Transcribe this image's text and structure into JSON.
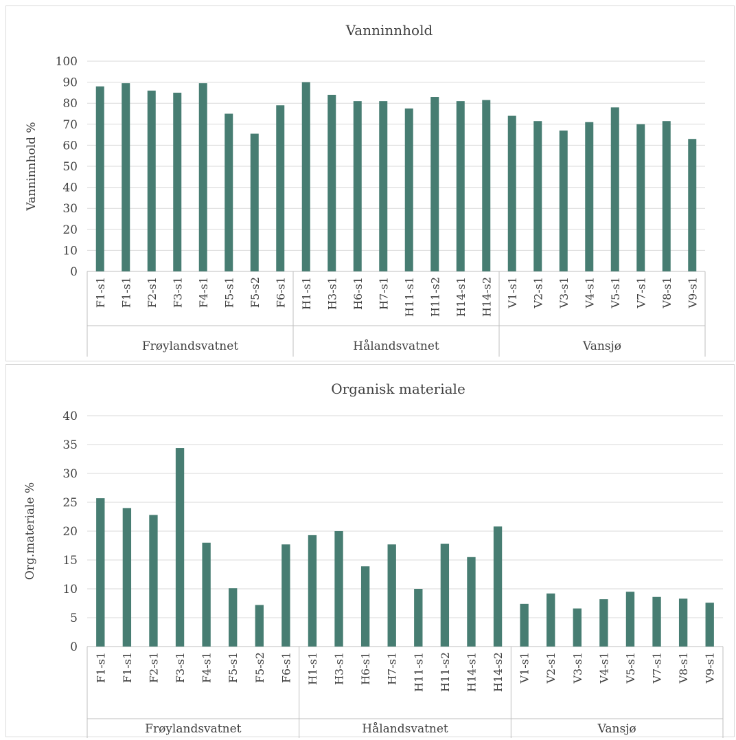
{
  "chart_data": [
    {
      "type": "bar",
      "title": "Vanninnhold",
      "xlabel": "",
      "ylabel": "Vanninnhold %",
      "ylim": [
        0,
        100
      ],
      "yticks": [
        0,
        10,
        20,
        30,
        40,
        50,
        60,
        70,
        80,
        90,
        100
      ],
      "grid": true,
      "legend": "none",
      "bar_color": "#477d72",
      "categories": [
        "F1-s1",
        "F1-s1",
        "F2-s1",
        "F3-s1",
        "F4-s1",
        "F5-s1",
        "F5-s2",
        "F6-s1",
        "H1-s1",
        "H3-s1",
        "H6-s1",
        "H7-s1",
        "H11-s1",
        "H11-s2",
        "H14-s1",
        "H14-s2",
        "V1-s1",
        "V2-s1",
        "V3-s1",
        "V4-s1",
        "V5-s1",
        "V7-s1",
        "V8-s1",
        "V9-s1"
      ],
      "groups": [
        {
          "label": "Frøylandsvatnet",
          "count": 8
        },
        {
          "label": "Hålandsvatnet",
          "count": 8
        },
        {
          "label": "Vansjø",
          "count": 8
        }
      ],
      "values": [
        88,
        89.5,
        86,
        85,
        89.5,
        75,
        65.5,
        79,
        90,
        84,
        81,
        81,
        77.5,
        83,
        81,
        81.5,
        74,
        71.5,
        67,
        71,
        78,
        70,
        71.5,
        63
      ]
    },
    {
      "type": "bar",
      "title": "Organisk materiale",
      "xlabel": "",
      "ylabel": "Org.materiale %",
      "ylim": [
        0,
        40
      ],
      "yticks": [
        0,
        5,
        10,
        15,
        20,
        25,
        30,
        35,
        40
      ],
      "grid": true,
      "legend": "none",
      "bar_color": "#477d72",
      "categories": [
        "F1-s1",
        "F1-s1",
        "F2-s1",
        "F3-s1",
        "F4-s1",
        "F5-s1",
        "F5-s2",
        "F6-s1",
        "H1-s1",
        "H3-s1",
        "H6-s1",
        "H7-s1",
        "H11-s1",
        "H11-s2",
        "H14-s1",
        "H14-s2",
        "V1-s1",
        "V2-s1",
        "V3-s1",
        "V4-s1",
        "V5-s1",
        "V7-s1",
        "V8-s1",
        "V9-s1"
      ],
      "groups": [
        {
          "label": "Frøylandsvatnet",
          "count": 8
        },
        {
          "label": "Hålandsvatnet",
          "count": 8
        },
        {
          "label": "Vansjø",
          "count": 8
        }
      ],
      "values": [
        25.7,
        24,
        22.8,
        34.4,
        18,
        10.1,
        7.2,
        17.7,
        19.3,
        20,
        13.9,
        17.7,
        10,
        17.8,
        15.5,
        20.8,
        7.4,
        9.2,
        6.6,
        8.2,
        9.5,
        8.6,
        8.3,
        7.6
      ]
    }
  ]
}
